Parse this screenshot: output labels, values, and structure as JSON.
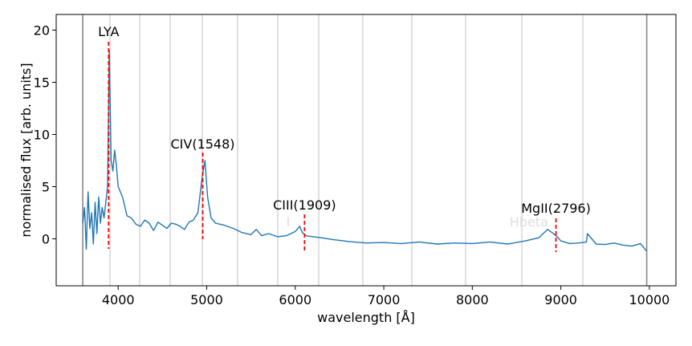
{
  "chart_data": {
    "type": "line",
    "title": "",
    "xlabel": "wavelength [Å]",
    "ylabel": "normalised flux [arb. units]",
    "xlim": [
      3300,
      10300
    ],
    "ylim": [
      -4.5,
      21.5
    ],
    "xticks": [
      4000,
      5000,
      6000,
      7000,
      8000,
      9000,
      10000
    ],
    "yticks": [
      0,
      5,
      10,
      15,
      20
    ],
    "grid": false,
    "legend": "none",
    "line_color": "#1f77b4",
    "marker_color": "#ff0000",
    "spectrum_range": [
      3600,
      9970
    ],
    "series": [
      {
        "x": [
          3600,
          3620,
          3640,
          3660,
          3680,
          3700,
          3720,
          3740,
          3760,
          3780,
          3800,
          3820,
          3840,
          3860,
          3880,
          3900,
          3920,
          3940,
          3960,
          3980,
          4000,
          4050,
          4100,
          4150,
          4200,
          4250,
          4300,
          4350,
          4400,
          4450,
          4500,
          4550,
          4600,
          4650,
          4700,
          4750,
          4800,
          4850,
          4900,
          4950,
          4980,
          5010,
          5050,
          5100,
          5150,
          5200,
          5300,
          5400,
          5500,
          5560,
          5620,
          5700,
          5800,
          5900,
          6000,
          6050,
          6080,
          6120,
          6200,
          6300,
          6400,
          6500,
          6600,
          6800,
          7000,
          7200,
          7400,
          7600,
          7800,
          8000,
          8200,
          8400,
          8600,
          8750,
          8850,
          8900,
          8960,
          9000,
          9100,
          9200,
          9290,
          9300,
          9400,
          9500,
          9600,
          9700,
          9800,
          9900,
          9970
        ],
        "y": [
          1.5,
          3.0,
          -1.0,
          4.5,
          1.0,
          2.5,
          -0.5,
          3.5,
          0.5,
          4.0,
          1.5,
          3.0,
          2.0,
          3.5,
          5.0,
          18.0,
          7.5,
          6.5,
          8.5,
          7.0,
          5.0,
          4.0,
          2.2,
          2.0,
          1.4,
          1.2,
          1.8,
          1.5,
          0.8,
          1.6,
          1.3,
          1.0,
          1.5,
          1.4,
          1.2,
          0.9,
          1.6,
          1.8,
          2.5,
          6.0,
          7.5,
          4.0,
          2.0,
          1.5,
          1.4,
          1.3,
          1.0,
          0.6,
          0.4,
          0.9,
          0.3,
          0.5,
          0.2,
          0.3,
          0.7,
          1.2,
          0.6,
          0.3,
          0.2,
          0.1,
          -0.05,
          -0.15,
          -0.25,
          -0.4,
          -0.35,
          -0.45,
          -0.3,
          -0.5,
          -0.4,
          -0.45,
          -0.3,
          -0.5,
          -0.2,
          0.1,
          0.9,
          0.6,
          0.2,
          -0.2,
          -0.45,
          -0.4,
          -0.3,
          0.5,
          -0.5,
          -0.55,
          -0.4,
          -0.6,
          -0.7,
          -0.45,
          -1.2
        ]
      }
    ],
    "emission_lines": [
      {
        "label": "LYA",
        "x": 3892
      },
      {
        "label": "CIV(1548)",
        "x": 4955
      },
      {
        "label": "CIII(1909)",
        "x": 6105
      },
      {
        "label": "MgII(2796)",
        "x": 8945
      }
    ],
    "faint_labels": [
      {
        "label": "Hbeta",
        "x": 8640
      },
      {
        "label": "I",
        "x": 5920
      }
    ]
  }
}
